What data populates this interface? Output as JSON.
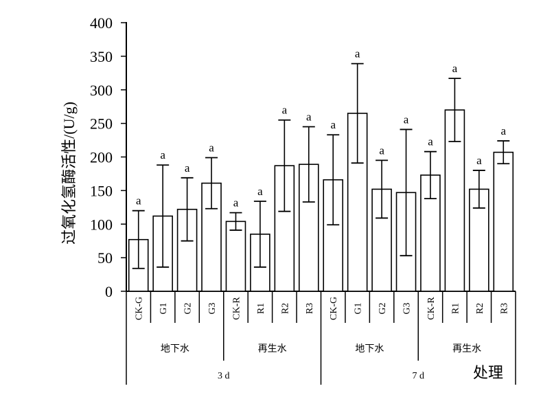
{
  "chart_data": {
    "type": "bar",
    "ylabel": "过氧化氢酶活性/(U/g)",
    "xlabel": "处理",
    "ylim": [
      0,
      400
    ],
    "yticks": [
      0,
      50,
      100,
      150,
      200,
      250,
      300,
      350,
      400
    ],
    "categories": [
      "CK-G",
      "G1",
      "G2",
      "G3",
      "CK-R",
      "R1",
      "R2",
      "R3",
      "CK-G",
      "G1",
      "G2",
      "G3",
      "CK-R",
      "R1",
      "R2",
      "R3"
    ],
    "values": [
      77,
      112,
      122,
      161,
      104,
      85,
      187,
      189,
      166,
      265,
      152,
      147,
      173,
      270,
      152,
      207
    ],
    "errors": [
      43,
      76,
      47,
      38,
      13,
      49,
      68,
      56,
      67,
      74,
      43,
      94,
      35,
      47,
      28,
      17
    ],
    "significance": [
      "a",
      "a",
      "a",
      "a",
      "a",
      "a",
      "a",
      "a",
      "a",
      "a",
      "a",
      "a",
      "a",
      "a",
      "a",
      "a"
    ],
    "groups": [
      "地下水",
      "再生水",
      "地下水",
      "再生水"
    ],
    "periods": [
      "3 d",
      "7 d"
    ],
    "grid": false,
    "legend": "none"
  }
}
